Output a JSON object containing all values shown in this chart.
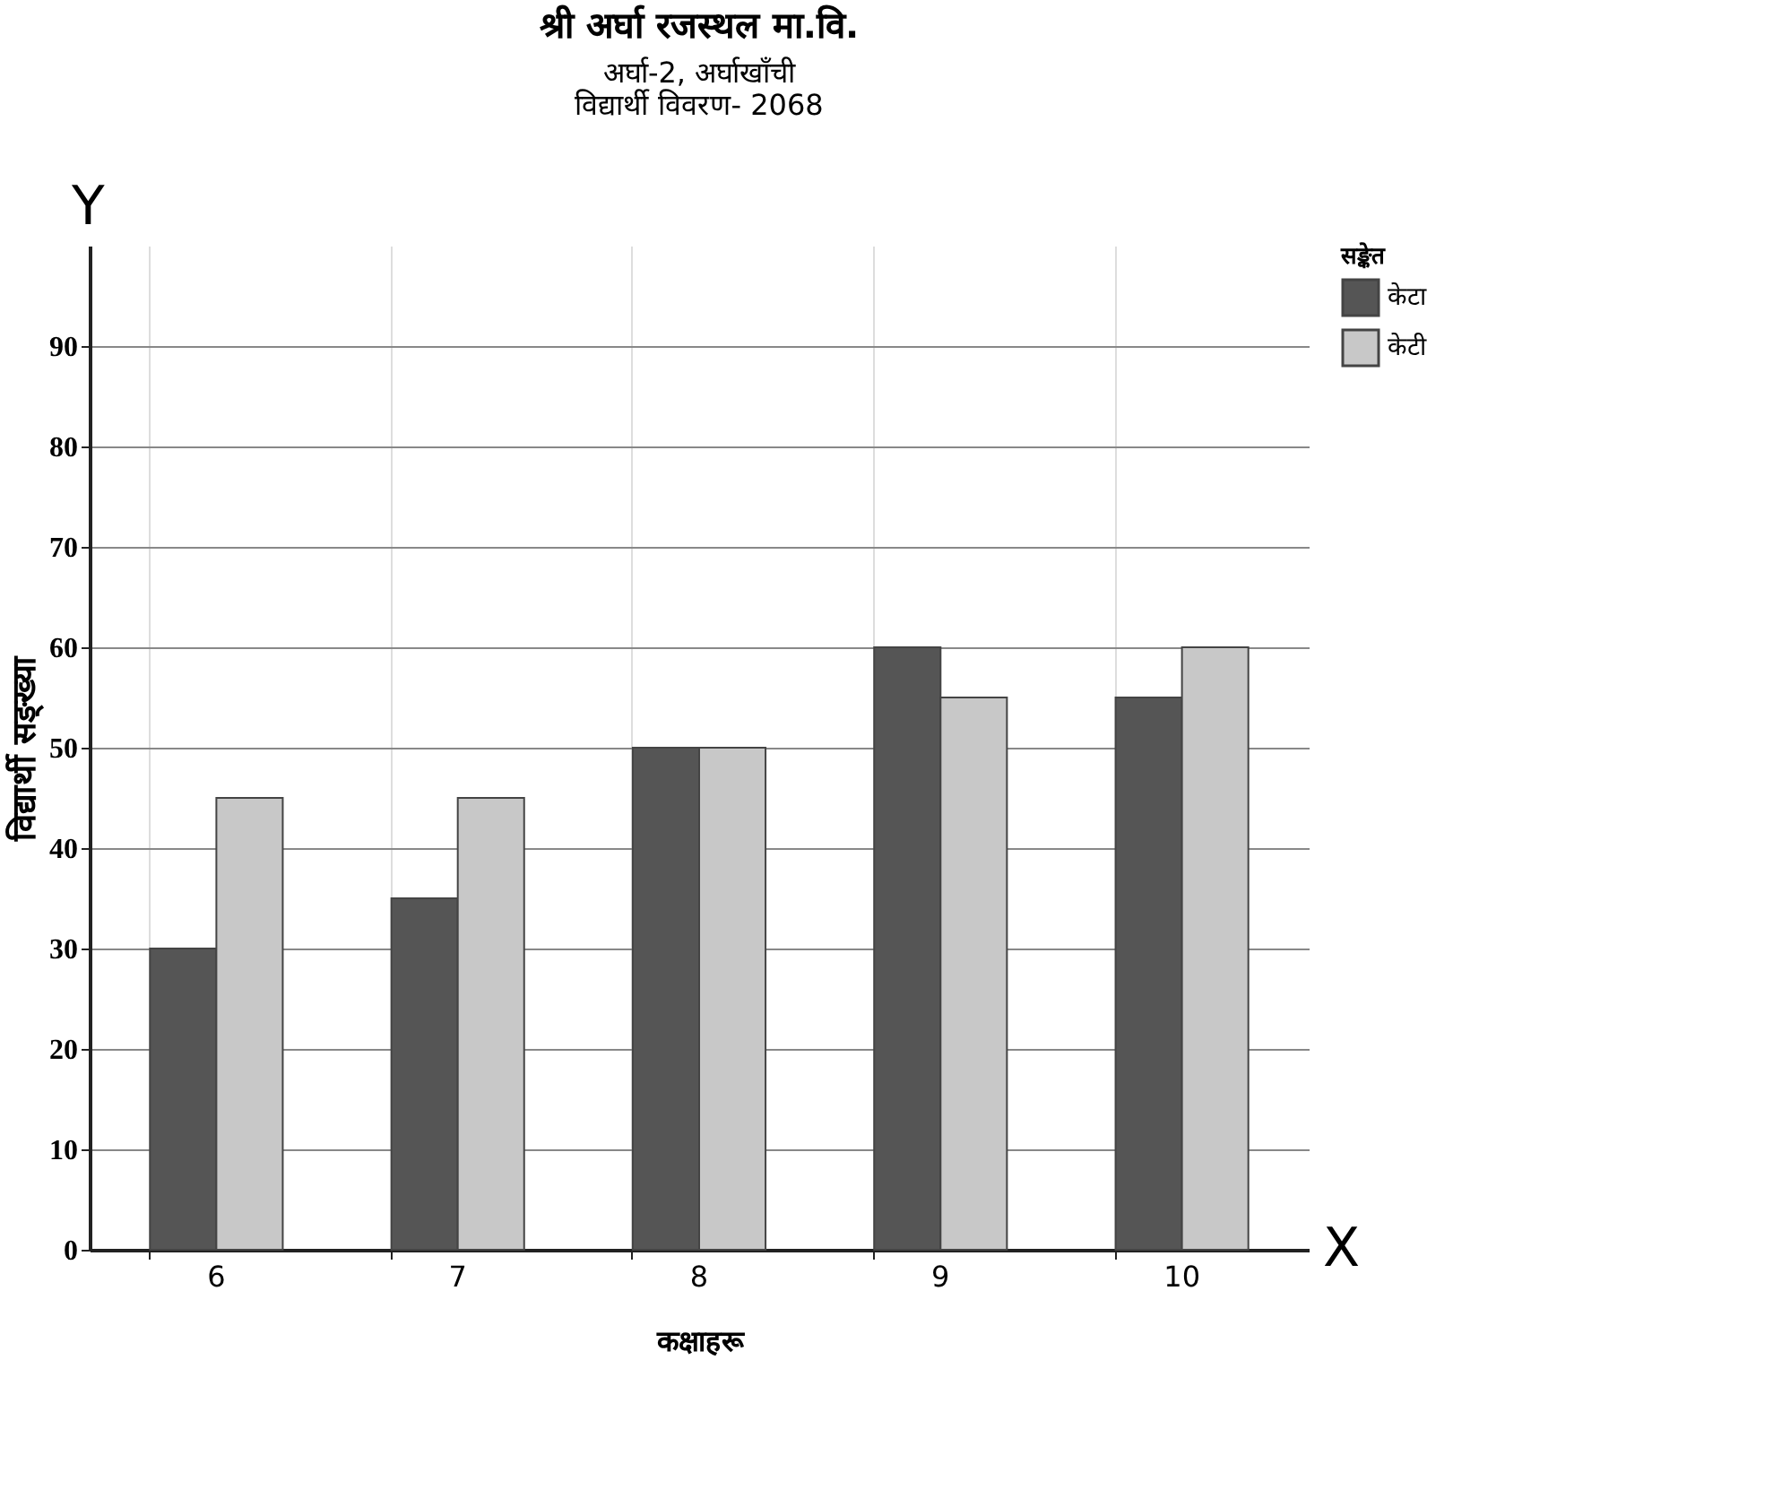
{
  "chart_data": {
    "type": "bar",
    "title": "श्री अर्घा रजस्थल मा.वि.",
    "subtitle": "अर्घा-2, अर्घाखाँची\nविद्यार्थी विवरण- 2068",
    "xlabel": "कक्षाहरू",
    "ylabel": "विद्यार्थी सङ्ख्या",
    "legend_title": "सङ्केत",
    "categories": [
      "6",
      "7",
      "8",
      "9",
      "10"
    ],
    "series": [
      {
        "name": "केटा",
        "color": "#555555",
        "values": [
          30,
          35,
          50,
          60,
          55
        ]
      },
      {
        "name": "केटी",
        "color": "#c8c8c8",
        "values": [
          45,
          45,
          50,
          55,
          60
        ]
      }
    ],
    "ylim": [
      0,
      100
    ],
    "yticks": [
      0,
      10,
      20,
      30,
      40,
      50,
      60,
      70,
      80,
      90
    ],
    "grid": true,
    "legend": "top right",
    "annotations": [
      "Y",
      "X"
    ]
  }
}
